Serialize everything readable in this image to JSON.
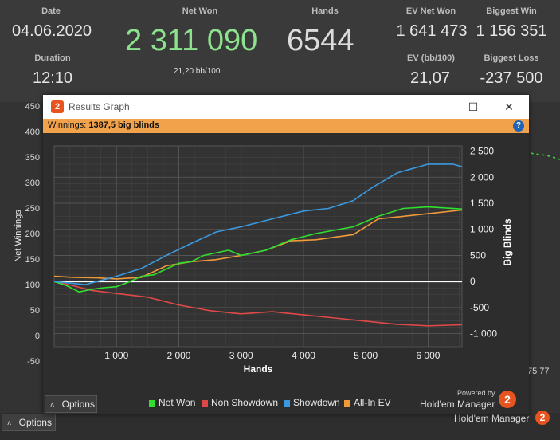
{
  "stats": {
    "date_label": "Date",
    "date_value": "04.06.2020",
    "netwon_label": "Net Won",
    "netwon_value": "2 311 090",
    "hands_label": "Hands",
    "hands_value": "6544",
    "ev_label": "EV Net Won",
    "ev_value": "1 641 473",
    "biggest_win_label": "Biggest Win",
    "biggest_win_value": "1 156 351",
    "duration_label": "Duration",
    "duration_value": "12:10",
    "bb100": "21,20 bb/100",
    "evbb_label": "EV (bb/100)",
    "evbb_value": "21,07",
    "biggest_loss_label": "Biggest Loss",
    "biggest_loss_value": "-237 500",
    "netwon_color": "#8de28d"
  },
  "background_chart": {
    "ytitle": "Net Winnings",
    "yticks": [
      "450",
      "400",
      "350",
      "300",
      "250",
      "200",
      "150",
      "100",
      "50",
      "0",
      "-50"
    ],
    "partial_xtick": "75 77"
  },
  "bottom": {
    "options_label": "Options",
    "brand": "Hold'em Manager",
    "logo": "2"
  },
  "window": {
    "title": "Results Graph",
    "logo": "2",
    "minimize_icon": "—",
    "maximize_icon": "☐",
    "close_icon": "✕",
    "winnings_label": "Winnings:",
    "winnings_value": "1387,5 big blinds",
    "help": "?",
    "options_label": "Options",
    "powered_by": "Powered by",
    "brand": "Hold'em Manager",
    "brand_logo": "2"
  },
  "chart_data": {
    "type": "line",
    "title": "",
    "xlabel": "Hands",
    "ylabel": "Big Blinds",
    "xlim": [
      0,
      6544
    ],
    "ylim": [
      -1250,
      2600
    ],
    "xticks": [
      1000,
      2000,
      3000,
      4000,
      5000,
      6000
    ],
    "xtick_labels": [
      "1 000",
      "2 000",
      "3 000",
      "4 000",
      "5 000",
      "6 000"
    ],
    "yticks": [
      -1000,
      -500,
      0,
      500,
      1000,
      1500,
      2000,
      2500
    ],
    "ytick_labels": [
      "-1 000",
      "-500",
      "0",
      "500",
      "1 000",
      "1 500",
      "2 000",
      "2 500"
    ],
    "grid": true,
    "legend_position": "bottom",
    "series": [
      {
        "name": "Net Won",
        "color": "#2fe02f",
        "x": [
          0,
          200,
          400,
          600,
          800,
          1000,
          1200,
          1400,
          1600,
          2000,
          2200,
          2400,
          2800,
          3000,
          3400,
          3800,
          4200,
          4800,
          5200,
          5600,
          6000,
          6544
        ],
        "y": [
          0,
          -80,
          -200,
          -150,
          -120,
          -100,
          -10,
          100,
          130,
          350,
          380,
          500,
          600,
          500,
          600,
          800,
          920,
          1050,
          1250,
          1400,
          1430,
          1390
        ]
      },
      {
        "name": "Non Showdown",
        "color": "#e04848",
        "x": [
          0,
          300,
          600,
          1000,
          1500,
          2000,
          2500,
          3000,
          3500,
          4000,
          4500,
          5000,
          5500,
          6000,
          6544
        ],
        "y": [
          0,
          -80,
          -170,
          -230,
          -300,
          -450,
          -560,
          -620,
          -580,
          -640,
          -700,
          -760,
          -820,
          -850,
          -830
        ]
      },
      {
        "name": "Showdown",
        "color": "#3a9ae0",
        "x": [
          0,
          500,
          1000,
          1400,
          1800,
          2200,
          2600,
          3000,
          3500,
          4000,
          4400,
          4800,
          5100,
          5500,
          6000,
          6400,
          6544
        ],
        "y": [
          0,
          -60,
          100,
          250,
          500,
          730,
          950,
          1050,
          1200,
          1350,
          1400,
          1550,
          1800,
          2080,
          2250,
          2250,
          2200
        ]
      },
      {
        "name": "All-In EV",
        "color": "#f09a3a",
        "x": [
          0,
          300,
          700,
          1000,
          1400,
          1800,
          2200,
          2600,
          3000,
          3400,
          3800,
          4200,
          4800,
          5200,
          5600,
          6000,
          6544
        ],
        "y": [
          100,
          80,
          70,
          50,
          80,
          300,
          380,
          420,
          500,
          600,
          780,
          800,
          900,
          1200,
          1250,
          1300,
          1370
        ]
      }
    ]
  }
}
